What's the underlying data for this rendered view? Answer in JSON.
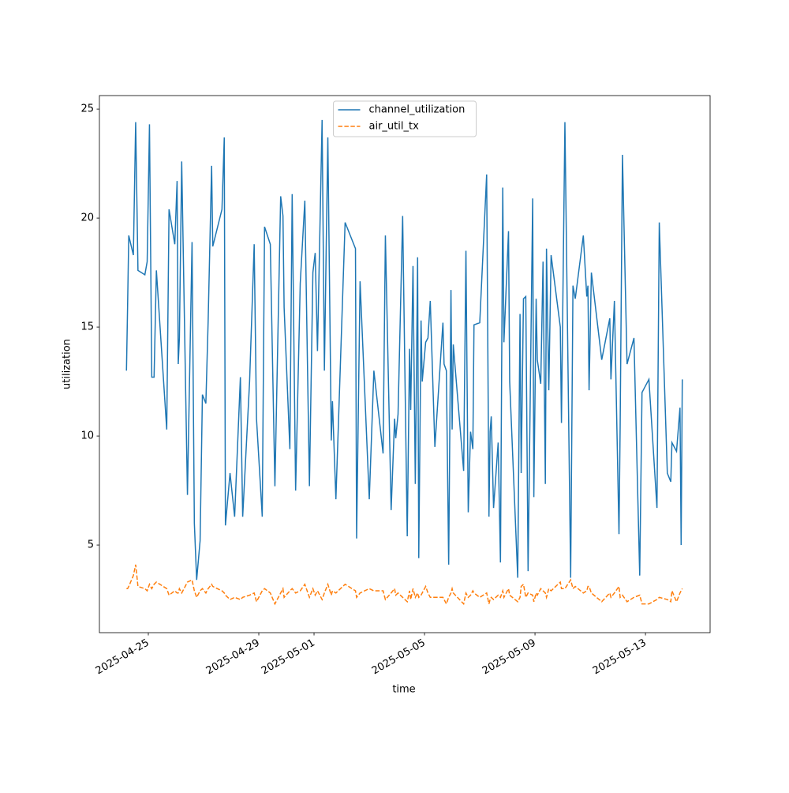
{
  "chart_data": {
    "type": "line",
    "x_label": "time",
    "y_label": "utilization",
    "x": [
      "2025-04-24T05:00",
      "2025-04-24T06:00",
      "2025-04-24T07:00",
      "2025-04-24T11:00",
      "2025-04-24T13:00",
      "2025-04-24T15:00",
      "2025-04-24T21:00",
      "2025-04-24T23:00",
      "2025-04-25T01:00",
      "2025-04-25T03:00",
      "2025-04-25T05:00",
      "2025-04-25T07:00",
      "2025-04-25T16:00",
      "2025-04-25T18:00",
      "2025-04-25T23:00",
      "2025-04-26T01:00",
      "2025-04-26T02:00",
      "2025-04-26T03:00",
      "2025-04-26T05:00",
      "2025-04-26T10:00",
      "2025-04-26T14:00",
      "2025-04-26T16:00",
      "2025-04-26T18:00",
      "2025-04-26T21:00",
      "2025-04-26T23:00",
      "2025-04-27T02:00",
      "2025-04-27T04:00",
      "2025-04-27T07:00",
      "2025-04-27T08:00",
      "2025-04-27T16:00",
      "2025-04-27T18:00",
      "2025-04-27T19:00",
      "2025-04-27T23:00",
      "2025-04-28T03:00",
      "2025-04-28T08:00",
      "2025-04-28T10:00",
      "2025-04-28T16:00",
      "2025-04-28T20:00",
      "2025-04-28T22:00",
      "2025-04-29T03:00",
      "2025-04-29T05:00",
      "2025-04-29T10:00",
      "2025-04-29T14:00",
      "2025-04-29T19:00",
      "2025-04-29T21:00",
      "2025-04-29T22:00",
      "2025-04-30T03:00",
      "2025-04-30T05:00",
      "2025-04-30T08:00",
      "2025-04-30T12:00",
      "2025-04-30T16:00",
      "2025-04-30T20:00",
      "2025-04-30T23:00",
      "2025-05-01T01:00",
      "2025-05-01T03:00",
      "2025-05-01T07:00",
      "2025-05-01T09:00",
      "2025-05-01T12:00",
      "2025-05-01T15:00",
      "2025-05-01T16:00",
      "2025-05-01T19:00",
      "2025-05-02T03:00",
      "2025-05-02T12:00",
      "2025-05-02T13:00",
      "2025-05-02T16:00",
      "2025-05-03T00:00",
      "2025-05-03T04:00",
      "2025-05-03T12:00",
      "2025-05-03T14:00",
      "2025-05-03T19:00",
      "2025-05-03T22:00",
      "2025-05-03T23:00",
      "2025-05-04T01:00",
      "2025-05-04T05:00",
      "2025-05-04T09:00",
      "2025-05-04T11:00",
      "2025-05-04T12:00",
      "2025-05-04T14:00",
      "2025-05-04T16:00",
      "2025-05-04T18:00",
      "2025-05-04T19:00",
      "2025-05-04T21:00",
      "2025-05-04T22:00",
      "2025-05-05T01:00",
      "2025-05-05T03:00",
      "2025-05-05T05:00",
      "2025-05-05T09:00",
      "2025-05-05T16:00",
      "2025-05-05T17:00",
      "2025-05-05T19:00",
      "2025-05-05T21:00",
      "2025-05-05T23:00",
      "2025-05-06T00:00",
      "2025-05-06T01:00",
      "2025-05-06T10:00",
      "2025-05-06T12:00",
      "2025-05-06T14:00",
      "2025-05-06T16:00",
      "2025-05-06T18:00",
      "2025-05-06T19:00",
      "2025-05-07T00:00",
      "2025-05-07T06:00",
      "2025-05-07T08:00",
      "2025-05-07T09:00",
      "2025-05-07T10:00",
      "2025-05-07T12:00",
      "2025-05-07T16:00",
      "2025-05-07T18:00",
      "2025-05-07T20:00",
      "2025-05-07T21:00",
      "2025-05-08T01:00",
      "2025-05-08T02:00",
      "2025-05-08T09:00",
      "2025-05-08T11:00",
      "2025-05-08T12:00",
      "2025-05-08T14:00",
      "2025-05-08T16:00",
      "2025-05-08T18:00",
      "2025-05-08T22:00",
      "2025-05-08T23:00",
      "2025-05-09T01:00",
      "2025-05-09T02:00",
      "2025-05-09T05:00",
      "2025-05-09T07:00",
      "2025-05-09T09:00",
      "2025-05-09T10:00",
      "2025-05-09T12:00",
      "2025-05-09T14:00",
      "2025-05-09T22:00",
      "2025-05-09T23:00",
      "2025-05-10T02:00",
      "2025-05-10T07:00",
      "2025-05-10T09:00",
      "2025-05-10T11:00",
      "2025-05-10T18:00",
      "2025-05-10T21:00",
      "2025-05-10T22:00",
      "2025-05-10T23:00",
      "2025-05-11T01:00",
      "2025-05-11T10:00",
      "2025-05-11T17:00",
      "2025-05-11T18:00",
      "2025-05-11T21:00",
      "2025-05-12T01:00",
      "2025-05-12T02:00",
      "2025-05-12T04:00",
      "2025-05-12T08:00",
      "2025-05-12T14:00",
      "2025-05-12T19:00",
      "2025-05-12T21:00",
      "2025-05-13T03:00",
      "2025-05-13T10:00",
      "2025-05-13T12:00",
      "2025-05-13T19:00",
      "2025-05-13T22:00",
      "2025-05-13T23:00",
      "2025-05-14T03:00",
      "2025-05-14T06:00",
      "2025-05-14T07:00",
      "2025-05-14T08:00"
    ],
    "series": [
      {
        "name": "channel_utilization",
        "color": "#1f77b4",
        "linestyle": "solid",
        "values": [
          13,
          16,
          19.2,
          18.3,
          24.4,
          17.6,
          17.4,
          18,
          24.3,
          12.7,
          12.7,
          17.6,
          10.3,
          20.4,
          18.8,
          21.7,
          13.3,
          14.5,
          22.6,
          7.3,
          18.9,
          6,
          3.4,
          5.2,
          11.9,
          11.5,
          15.3,
          22.4,
          18.7,
          20.4,
          23.7,
          5.9,
          8.3,
          6.3,
          12.7,
          6.3,
          12.5,
          18.8,
          10.8,
          6.3,
          19.6,
          18.8,
          7.7,
          21,
          20.1,
          15.9,
          9.4,
          21.1,
          7.5,
          17,
          20.8,
          7.7,
          17.5,
          18.4,
          13.9,
          24.5,
          13,
          23.7,
          9.8,
          11.6,
          7.1,
          19.8,
          18.6,
          5.3,
          17.1,
          7.1,
          13,
          9.2,
          19.2,
          6.6,
          10.8,
          9.9,
          11,
          20.1,
          5.4,
          14,
          11.2,
          17.8,
          7.8,
          18.2,
          4.4,
          15.3,
          12.5,
          14.3,
          14.5,
          16.2,
          9.5,
          15.2,
          13.3,
          13,
          4.1,
          16.7,
          10.3,
          14.2,
          8.4,
          18.5,
          6.5,
          10.2,
          9.4,
          15.1,
          15.2,
          22,
          6.3,
          10.2,
          10.9,
          6.7,
          9.7,
          4.2,
          21.4,
          14.3,
          19.4,
          12.5,
          3.5,
          15.6,
          8.3,
          16.3,
          16.4,
          3.8,
          20.9,
          7.2,
          16.3,
          13.5,
          12.4,
          18,
          7.8,
          18.6,
          12.1,
          18.3,
          15,
          10.6,
          24.4,
          3.5,
          16.9,
          16.3,
          19.2,
          16.4,
          16.9,
          12.1,
          17.5,
          13.5,
          15.4,
          12.6,
          16.2,
          5.5,
          10.4,
          22.9,
          13.3,
          14.5,
          3.6,
          12,
          12.6,
          6.7,
          19.8,
          8.3,
          7.9,
          9.7,
          9.3,
          11.3,
          5,
          12.6
        ]
      },
      {
        "name": "air_util_tx",
        "color": "#ff7f0e",
        "linestyle": "dashed",
        "values": [
          3.0,
          3.0,
          3.1,
          3.6,
          4.1,
          3.1,
          3.0,
          2.9,
          3.2,
          3.0,
          3.2,
          3.3,
          3.0,
          2.7,
          2.9,
          2.8,
          2.8,
          3.0,
          2.8,
          3.3,
          3.4,
          2.9,
          2.6,
          2.9,
          3.0,
          2.8,
          3.0,
          3.2,
          3.1,
          2.9,
          2.8,
          2.7,
          2.5,
          2.6,
          2.5,
          2.6,
          2.7,
          2.8,
          2.4,
          2.9,
          3.0,
          2.8,
          2.3,
          2.8,
          3.0,
          2.6,
          2.9,
          3.0,
          2.8,
          2.9,
          3.2,
          2.6,
          3.0,
          2.7,
          2.9,
          2.5,
          2.8,
          3.2,
          2.7,
          2.9,
          2.8,
          3.2,
          2.9,
          2.6,
          2.8,
          3.0,
          2.9,
          2.9,
          2.5,
          2.8,
          3.0,
          2.7,
          2.8,
          2.6,
          2.4,
          2.9,
          2.5,
          3.0,
          2.6,
          2.8,
          2.6,
          2.7,
          2.8,
          3.1,
          2.8,
          2.6,
          2.6,
          2.6,
          2.5,
          2.3,
          2.6,
          2.8,
          3.0,
          2.8,
          2.3,
          2.8,
          2.6,
          2.7,
          2.9,
          2.8,
          2.6,
          2.8,
          2.3,
          2.5,
          2.6,
          2.5,
          2.7,
          2.6,
          2.9,
          2.6,
          3.0,
          2.7,
          2.4,
          2.6,
          3.1,
          3.2,
          2.6,
          2.8,
          2.7,
          2.4,
          2.8,
          2.7,
          3.0,
          2.9,
          2.8,
          2.6,
          3.0,
          2.9,
          3.3,
          3.0,
          3.0,
          3.4,
          3.0,
          3.1,
          2.8,
          2.9,
          3.1,
          3.1,
          2.8,
          2.4,
          2.8,
          2.6,
          2.8,
          3.1,
          2.6,
          2.7,
          2.4,
          2.6,
          2.7,
          2.3,
          2.3,
          2.5,
          2.6,
          2.5,
          2.4,
          2.9,
          2.4,
          2.8,
          2.9,
          3.0
        ]
      }
    ],
    "xlim": [
      "2025-04-23T05:30",
      "2025-05-15T08:10"
    ],
    "xticks": [
      "2025-04-25",
      "2025-04-29",
      "2025-05-01",
      "2025-05-05",
      "2025-05-09",
      "2025-05-13"
    ],
    "ylim": [
      0.98,
      25.62
    ],
    "yticks": [
      5,
      10,
      15,
      20,
      25
    ],
    "grid": false,
    "legend": "upper center"
  }
}
